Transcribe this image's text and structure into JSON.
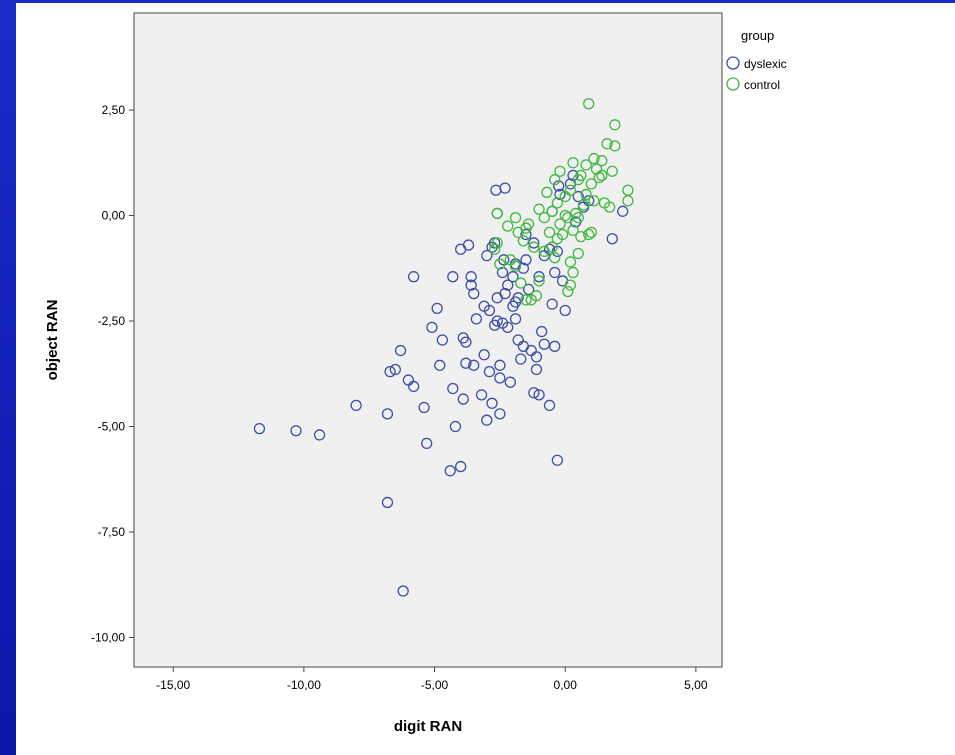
{
  "colors": {
    "dyslexic": "#3e4fa8",
    "control": "#3fba3f",
    "plot_bg": "#f0f0f0",
    "frame_accent": "#1a2cc8"
  },
  "chart_data": {
    "type": "scatter",
    "xlabel": "digit RAN",
    "ylabel": "object RAN",
    "xlim": [
      -16.5,
      6.0
    ],
    "ylim": [
      -10.7,
      4.8
    ],
    "xticks": [
      -15,
      -10,
      -5,
      0,
      5
    ],
    "yticks": [
      2.5,
      0,
      -2.5,
      -5,
      -7.5,
      -10
    ],
    "xtick_labels": [
      "-15,00",
      "-10,00",
      "-5,00",
      "0,00",
      "5,00"
    ],
    "ytick_labels": [
      "2,50",
      "0,00",
      "-2,50",
      "-5,00",
      "-7,50",
      "-10,00"
    ],
    "grid": false,
    "legend": {
      "title": "group",
      "position": "top-right-outside"
    },
    "series": [
      {
        "name": "dyslexic",
        "color": "#3e4fa8",
        "points": [
          [
            -11.7,
            -5.05
          ],
          [
            -10.3,
            -5.1
          ],
          [
            -9.4,
            -5.2
          ],
          [
            -8.0,
            -4.5
          ],
          [
            -6.8,
            -4.7
          ],
          [
            -6.8,
            -6.8
          ],
          [
            -6.2,
            -8.9
          ],
          [
            -6.7,
            -3.7
          ],
          [
            -6.5,
            -3.65
          ],
          [
            -6.3,
            -3.2
          ],
          [
            -6.0,
            -3.9
          ],
          [
            -5.8,
            -4.05
          ],
          [
            -5.8,
            -1.45
          ],
          [
            -5.4,
            -4.55
          ],
          [
            -5.3,
            -5.4
          ],
          [
            -5.1,
            -2.65
          ],
          [
            -4.9,
            -2.2
          ],
          [
            -4.8,
            -3.55
          ],
          [
            -4.7,
            -2.95
          ],
          [
            -4.4,
            -6.05
          ],
          [
            -4.3,
            -1.45
          ],
          [
            -4.3,
            -4.1
          ],
          [
            -4.2,
            -5.0
          ],
          [
            -4.0,
            -0.8
          ],
          [
            -4.0,
            -5.95
          ],
          [
            -3.9,
            -2.9
          ],
          [
            -3.9,
            -4.35
          ],
          [
            -3.8,
            -3.5
          ],
          [
            -3.8,
            -3.0
          ],
          [
            -3.7,
            -0.7
          ],
          [
            -3.6,
            -1.65
          ],
          [
            -3.6,
            -1.45
          ],
          [
            -3.5,
            -3.55
          ],
          [
            -3.5,
            -1.85
          ],
          [
            -3.4,
            -2.45
          ],
          [
            -3.2,
            -4.25
          ],
          [
            -3.1,
            -2.15
          ],
          [
            -3.1,
            -3.3
          ],
          [
            -3.0,
            -0.95
          ],
          [
            -3.0,
            -4.85
          ],
          [
            -2.9,
            -3.7
          ],
          [
            -2.9,
            -2.25
          ],
          [
            -2.8,
            -4.45
          ],
          [
            -2.7,
            -2.6
          ],
          [
            -2.7,
            -0.65
          ],
          [
            -2.65,
            0.6
          ],
          [
            -2.6,
            -1.95
          ],
          [
            -2.6,
            -2.5
          ],
          [
            -2.5,
            -3.85
          ],
          [
            -2.5,
            -3.55
          ],
          [
            -2.5,
            -4.7
          ],
          [
            -2.4,
            -1.35
          ],
          [
            -2.4,
            -2.55
          ],
          [
            -2.3,
            0.65
          ],
          [
            -2.3,
            -1.85
          ],
          [
            -2.2,
            -2.65
          ],
          [
            -2.2,
            -1.65
          ],
          [
            -2.1,
            -3.95
          ],
          [
            -2.0,
            -1.45
          ],
          [
            -2.0,
            -2.15
          ],
          [
            -1.9,
            -2.05
          ],
          [
            -1.9,
            -2.45
          ],
          [
            -1.8,
            -1.95
          ],
          [
            -1.8,
            -2.95
          ],
          [
            -1.7,
            -3.4
          ],
          [
            -1.6,
            -1.25
          ],
          [
            -1.6,
            -3.1
          ],
          [
            -1.5,
            -1.05
          ],
          [
            -1.4,
            -1.75
          ],
          [
            -1.3,
            -3.2
          ],
          [
            -1.2,
            -4.2
          ],
          [
            -1.1,
            -3.35
          ],
          [
            -1.1,
            -3.65
          ],
          [
            -1.0,
            -4.25
          ],
          [
            -1.0,
            -1.45
          ],
          [
            -0.9,
            -2.75
          ],
          [
            -0.8,
            -3.05
          ],
          [
            -0.6,
            -4.5
          ],
          [
            -0.5,
            -2.1
          ],
          [
            -0.4,
            -3.1
          ],
          [
            -0.3,
            -5.8
          ],
          [
            -0.3,
            -0.85
          ],
          [
            -0.1,
            -1.55
          ],
          [
            0.0,
            -2.25
          ],
          [
            -0.8,
            -0.95
          ],
          [
            -1.5,
            -0.45
          ],
          [
            -0.2,
            0.5
          ],
          [
            0.2,
            0.75
          ],
          [
            0.5,
            0.45
          ],
          [
            0.7,
            0.2
          ],
          [
            0.9,
            0.35
          ],
          [
            0.3,
            0.95
          ],
          [
            -0.4,
            -1.35
          ],
          [
            1.8,
            -0.55
          ],
          [
            2.2,
            0.1
          ],
          [
            -2.6,
            0.05
          ],
          [
            -0.6,
            -0.8
          ],
          [
            -1.2,
            -0.65
          ],
          [
            0.4,
            -0.15
          ],
          [
            -2.8,
            -0.75
          ],
          [
            -1.9,
            -1.15
          ],
          [
            -2.35,
            -1.05
          ],
          [
            -0.25,
            0.7
          ],
          [
            -0.5,
            0.1
          ]
        ]
      },
      {
        "name": "control",
        "color": "#3fba3f",
        "points": [
          [
            0.9,
            2.65
          ],
          [
            1.9,
            2.15
          ],
          [
            1.6,
            1.7
          ],
          [
            1.9,
            1.65
          ],
          [
            1.4,
            1.3
          ],
          [
            1.1,
            1.35
          ],
          [
            1.2,
            1.1
          ],
          [
            0.8,
            1.2
          ],
          [
            0.3,
            1.25
          ],
          [
            -0.2,
            1.05
          ],
          [
            0.6,
            0.95
          ],
          [
            1.4,
            0.95
          ],
          [
            1.8,
            1.05
          ],
          [
            2.4,
            0.6
          ],
          [
            2.4,
            0.35
          ],
          [
            1.7,
            0.2
          ],
          [
            1.1,
            0.35
          ],
          [
            0.8,
            0.5
          ],
          [
            0.5,
            0.85
          ],
          [
            0.2,
            0.6
          ],
          [
            0.0,
            0.45
          ],
          [
            -0.3,
            0.3
          ],
          [
            -0.5,
            0.1
          ],
          [
            -0.8,
            -0.05
          ],
          [
            -1.0,
            0.15
          ],
          [
            -1.4,
            -0.2
          ],
          [
            -1.5,
            -0.3
          ],
          [
            -1.9,
            -0.05
          ],
          [
            -2.2,
            -0.25
          ],
          [
            -0.1,
            -0.45
          ],
          [
            0.3,
            -0.35
          ],
          [
            0.6,
            -0.5
          ],
          [
            0.9,
            -0.45
          ],
          [
            1.0,
            -0.4
          ],
          [
            0.5,
            -0.9
          ],
          [
            0.2,
            -1.1
          ],
          [
            0.3,
            -1.35
          ],
          [
            0.2,
            -1.65
          ],
          [
            0.1,
            -1.8
          ],
          [
            -1.1,
            -1.9
          ],
          [
            -1.3,
            -2.0
          ],
          [
            -1.5,
            -2.0
          ],
          [
            -1.9,
            -1.2
          ],
          [
            -2.1,
            -1.05
          ],
          [
            -2.5,
            -1.15
          ],
          [
            -2.6,
            -0.65
          ],
          [
            -2.7,
            -0.8
          ],
          [
            -1.6,
            -0.6
          ],
          [
            -1.2,
            -0.75
          ],
          [
            -0.8,
            -0.85
          ],
          [
            -0.5,
            -0.75
          ],
          [
            -0.3,
            -0.55
          ],
          [
            -0.6,
            -0.4
          ],
          [
            -0.2,
            -0.2
          ],
          [
            0.1,
            -0.05
          ],
          [
            0.4,
            0.05
          ],
          [
            0.7,
            0.25
          ],
          [
            1.0,
            0.75
          ],
          [
            1.3,
            0.9
          ],
          [
            -0.4,
            0.85
          ],
          [
            -0.7,
            0.55
          ],
          [
            -1.8,
            -0.4
          ],
          [
            0.0,
            0.0
          ],
          [
            0.5,
            -0.05
          ],
          [
            1.5,
            0.3
          ],
          [
            -1.0,
            -1.55
          ],
          [
            -0.4,
            -1.0
          ],
          [
            -1.7,
            -1.6
          ],
          [
            -2.6,
            0.05
          ]
        ]
      }
    ]
  }
}
